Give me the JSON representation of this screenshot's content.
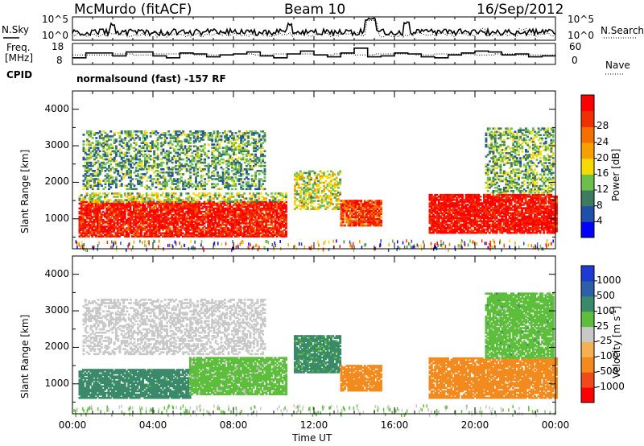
{
  "header": {
    "station": "McMurdo (fitACF)",
    "beam": "Beam 10",
    "date": "16/Sep/2012"
  },
  "top_panels": {
    "nsky_label": "N.Sky",
    "nsearch_label": "N.Search",
    "nsky_ticks": [
      "10^5",
      "10^0"
    ],
    "nsearch_ticks": [
      "10^5",
      "10^0"
    ],
    "freq_label_1": "Freq.",
    "freq_label_2": "[MHz]",
    "freq_ticks": [
      "18",
      "8"
    ],
    "nave_label": "Nave",
    "nave_ticks": [
      "60",
      "0"
    ],
    "cpid_label": "CPID",
    "cpid_value": "normalsound (fast) -157 RF"
  },
  "colors": {
    "power": [
      "#0000ff",
      "#1f4fa8",
      "#3e7a5e",
      "#6cbf4a",
      "#f5d900",
      "#f5a000",
      "#f56e00",
      "#f03000",
      "#ff0000"
    ],
    "velocity": [
      "#ff0000",
      "#f04a1a",
      "#f28a1e",
      "#f5b050",
      "#c8c8c8",
      "#5cbe3a",
      "#3a8a6a",
      "#2c5fa8",
      "#1f3ad0"
    ]
  },
  "chart_data": [
    {
      "type": "heatmap",
      "name": "power-panel",
      "xlabel": "",
      "ylabel": "Slant Range [km]",
      "x_ticks": [
        "00:00",
        "04:00",
        "08:00",
        "12:00",
        "16:00",
        "20:00",
        "00:00"
      ],
      "xlim_hours": [
        0,
        24
      ],
      "ylim_km": [
        180,
        4500
      ],
      "y_ticks": [
        1000,
        2000,
        3000,
        4000
      ],
      "colorbar": {
        "label": "Power [dB]",
        "ticks": [
          "4",
          "8",
          "12",
          "16",
          "20",
          "24",
          "28"
        ],
        "range": [
          0,
          30
        ]
      },
      "echo_regions": [
        {
          "t0": 0.3,
          "t1": 10.6,
          "r0": 500,
          "r1": 1450,
          "value": 27
        },
        {
          "t0": 0.3,
          "t1": 10.6,
          "r0": 1450,
          "r1": 1700,
          "value": 13
        },
        {
          "t0": 0.5,
          "t1": 9.5,
          "r0": 1800,
          "r1": 3400,
          "value": 10
        },
        {
          "t0": 11.0,
          "t1": 13.3,
          "r0": 1250,
          "r1": 2300,
          "value": 14
        },
        {
          "t0": 13.3,
          "t1": 15.3,
          "r0": 800,
          "r1": 1500,
          "value": 24
        },
        {
          "t0": 17.7,
          "t1": 24.0,
          "r0": 600,
          "r1": 1650,
          "value": 28
        },
        {
          "t0": 20.5,
          "t1": 23.9,
          "r0": 1700,
          "r1": 3500,
          "value": 11
        }
      ]
    },
    {
      "type": "heatmap",
      "name": "velocity-panel",
      "xlabel": "Time UT",
      "ylabel": "Slant Range [km]",
      "x_ticks": [
        "00:00",
        "04:00",
        "08:00",
        "12:00",
        "16:00",
        "20:00",
        "00:00"
      ],
      "xlim_hours": [
        0,
        24
      ],
      "ylim_km": [
        180,
        4500
      ],
      "y_ticks": [
        1000,
        2000,
        3000,
        4000
      ],
      "colorbar": {
        "label": "Velocity [m s",
        "label_sup": "-1",
        "label_end": "]",
        "ticks": [
          "1000",
          "500",
          "100",
          "25",
          "-25",
          "-100",
          "-500",
          "-1000"
        ]
      },
      "echo_regions": [
        {
          "t0": 0.3,
          "t1": 5.8,
          "r0": 600,
          "r1": 1400,
          "value": 200
        },
        {
          "t0": 5.8,
          "t1": 10.6,
          "r0": 700,
          "r1": 1700,
          "value": 50
        },
        {
          "t0": 0.5,
          "t1": 9.5,
          "r0": 1800,
          "r1": 3300,
          "value": 0
        },
        {
          "t0": 11.0,
          "t1": 13.3,
          "r0": 1300,
          "r1": 2300,
          "value": 150
        },
        {
          "t0": 13.3,
          "t1": 15.3,
          "r0": 800,
          "r1": 1500,
          "value": -200
        },
        {
          "t0": 17.7,
          "t1": 24.0,
          "r0": 600,
          "r1": 1700,
          "value": -300
        },
        {
          "t0": 20.5,
          "t1": 23.9,
          "r0": 1700,
          "r1": 3500,
          "value": 60
        }
      ]
    }
  ]
}
